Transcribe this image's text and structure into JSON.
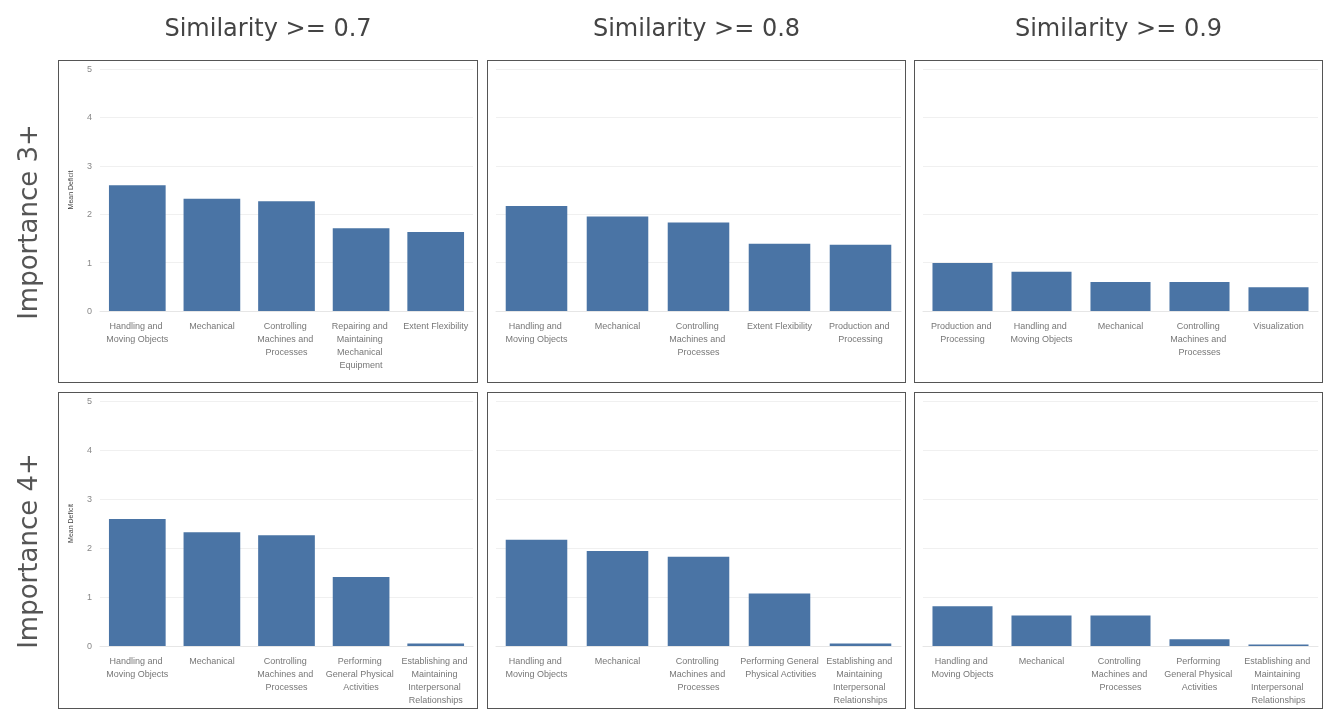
{
  "chart_data": [
    {
      "type": "bar",
      "title": "Similarity >= 0.7",
      "ylabel": "Mean Deficit",
      "annotations": [
        "Importance 3+"
      ],
      "categories": [
        "Handling and Moving Objects",
        "Mechanical",
        "Controlling Machines and Processes",
        "Repairing and Maintaining Mechanical Equipment",
        "Extent Flexibility"
      ],
      "values": [
        2.6,
        2.32,
        2.27,
        1.71,
        1.63
      ],
      "color": "#4a74a5",
      "ylim": [
        0,
        5
      ],
      "yticks": [
        0,
        1,
        2,
        3,
        4,
        5
      ],
      "grid": "y"
    },
    {
      "type": "bar",
      "title": "Similarity >= 0.8",
      "categories": [
        "Handling and Moving Objects",
        "Mechanical",
        "Controlling Machines and Processes",
        "Extent Flexibility",
        "Production and Processing"
      ],
      "values": [
        2.17,
        1.95,
        1.83,
        1.39,
        1.37
      ],
      "color": "#4a74a5",
      "ylim": [
        0,
        5
      ],
      "yticks": [
        0,
        1,
        2,
        3,
        4,
        5
      ],
      "grid": "y",
      "tick_labels": "x"
    },
    {
      "type": "bar",
      "title": "Similarity >= 0.9",
      "categories": [
        "Production and Processing",
        "Handling and Moving Objects",
        "Mechanical",
        "Controlling Machines and Processes",
        "Visualization"
      ],
      "values": [
        0.99,
        0.81,
        0.6,
        0.6,
        0.49
      ],
      "color": "#4a74a5",
      "ylim": [
        0,
        5
      ],
      "yticks": [
        0,
        1,
        2,
        3,
        4,
        5
      ],
      "grid": "y",
      "tick_labels": "x"
    },
    {
      "type": "bar",
      "ylabel": "Mean Deficit",
      "annotations": [
        "Importance 4+"
      ],
      "categories": [
        "Handling and Moving Objects",
        "Mechanical",
        "Controlling Machines and Processes",
        "Performing General Physical Activities",
        "Establishing and Maintaining Interpersonal Relationships"
      ],
      "values": [
        2.59,
        2.32,
        2.26,
        1.41,
        0.05
      ],
      "color": "#4a74a5",
      "ylim": [
        0,
        5
      ],
      "yticks": [
        0,
        1,
        2,
        3,
        4,
        5
      ],
      "grid": "y"
    },
    {
      "type": "bar",
      "categories": [
        "Handling and Moving Objects",
        "Mechanical",
        "Controlling Machines and Processes",
        "Performing General Physical Activities",
        "Establishing and Maintaining Interpersonal Relationships"
      ],
      "values": [
        2.17,
        1.94,
        1.82,
        1.07,
        0.05
      ],
      "color": "#4a74a5",
      "ylim": [
        0,
        5
      ],
      "yticks": [
        0,
        1,
        2,
        3,
        4,
        5
      ],
      "grid": "y",
      "tick_labels": "x"
    },
    {
      "type": "bar",
      "categories": [
        "Handling and Moving Objects",
        "Mechanical",
        "Controlling Machines and Processes",
        "Performing General Physical Activities",
        "Establishing and Maintaining Interpersonal Relationships"
      ],
      "values": [
        0.81,
        0.62,
        0.62,
        0.14,
        0.03
      ],
      "color": "#4a74a5",
      "ylim": [
        0,
        5
      ],
      "yticks": [
        0,
        1,
        2,
        3,
        4,
        5
      ],
      "grid": "y",
      "tick_labels": "x"
    }
  ]
}
